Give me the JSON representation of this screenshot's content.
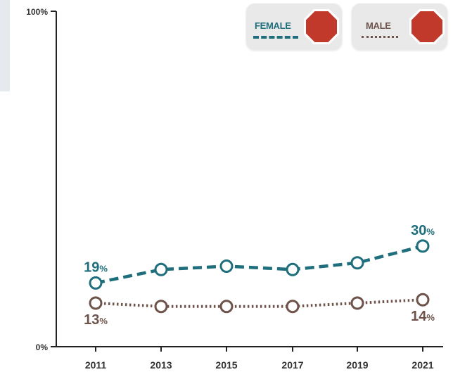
{
  "colors": {
    "female": "#1e6e7c",
    "male": "#6e534b",
    "stop_sign": "#c0392b",
    "axis": "#222222"
  },
  "legend": {
    "female_label": "FEMALE",
    "male_label": "MALE",
    "icon": "stop-sign-icon"
  },
  "chart_data": {
    "type": "line",
    "x": [
      "2011",
      "2013",
      "2015",
      "2017",
      "2019",
      "2021"
    ],
    "ylim": [
      0,
      100
    ],
    "y_ticks": [
      "0%",
      "100%"
    ],
    "grid": false,
    "legend_position": "top-right",
    "series": [
      {
        "name": "FEMALE",
        "values": [
          19,
          23,
          24,
          23,
          25,
          30
        ],
        "style": "dashed"
      },
      {
        "name": "MALE",
        "values": [
          13,
          12,
          12,
          12,
          13,
          14
        ],
        "style": "dotted"
      }
    ],
    "data_labels": [
      {
        "series": "FEMALE",
        "index": 0,
        "value": "19",
        "unit": "%"
      },
      {
        "series": "FEMALE",
        "index": 5,
        "value": "30",
        "unit": "%"
      },
      {
        "series": "MALE",
        "index": 0,
        "value": "13",
        "unit": "%"
      },
      {
        "series": "MALE",
        "index": 5,
        "value": "14",
        "unit": "%"
      }
    ]
  }
}
